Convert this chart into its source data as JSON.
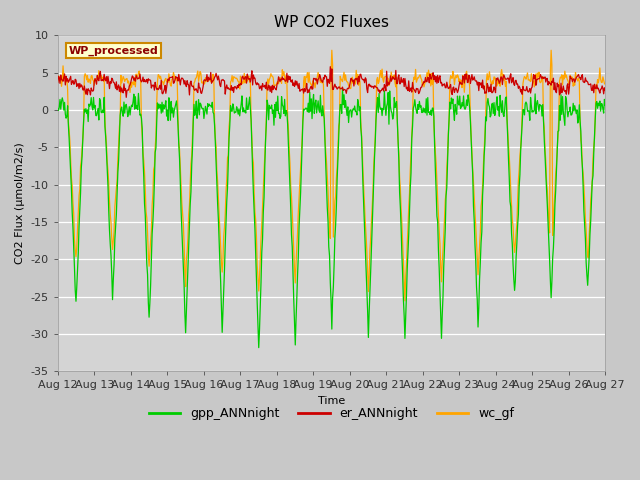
{
  "title": "WP CO2 Fluxes",
  "xlabel": "Time",
  "ylabel": "CO2 Flux (μmol/m2/s)",
  "ylim": [
    -35,
    10
  ],
  "xtick_labels": [
    "Aug 12",
    "Aug 13",
    "Aug 14",
    "Aug 15",
    "Aug 16",
    "Aug 17",
    "Aug 18",
    "Aug 19",
    "Aug 20",
    "Aug 21",
    "Aug 22",
    "Aug 23",
    "Aug 24",
    "Aug 25",
    "Aug 26",
    "Aug 27"
  ],
  "ytick_vals": [
    10,
    5,
    0,
    -5,
    -10,
    -15,
    -20,
    -25,
    -30,
    -35
  ],
  "fig_bg_color": "#c8c8c8",
  "plot_bg_color": "#d4d4d4",
  "line_green": "#00cc00",
  "line_red": "#cc0000",
  "line_orange": "#ffa500",
  "legend_label_text": "WP_processed",
  "legend_text_color": "#8b0000",
  "legend_bg": "#ffffcc",
  "legend_border": "#cc8800",
  "series_labels": [
    "gpp_ANNnight",
    "er_ANNnight",
    "wc_gf"
  ],
  "series_colors": [
    "#00cc00",
    "#cc0000",
    "#ffa500"
  ],
  "n_days": 15,
  "ppd": 48,
  "title_fontsize": 11,
  "axis_label_fontsize": 8,
  "tick_fontsize": 8
}
